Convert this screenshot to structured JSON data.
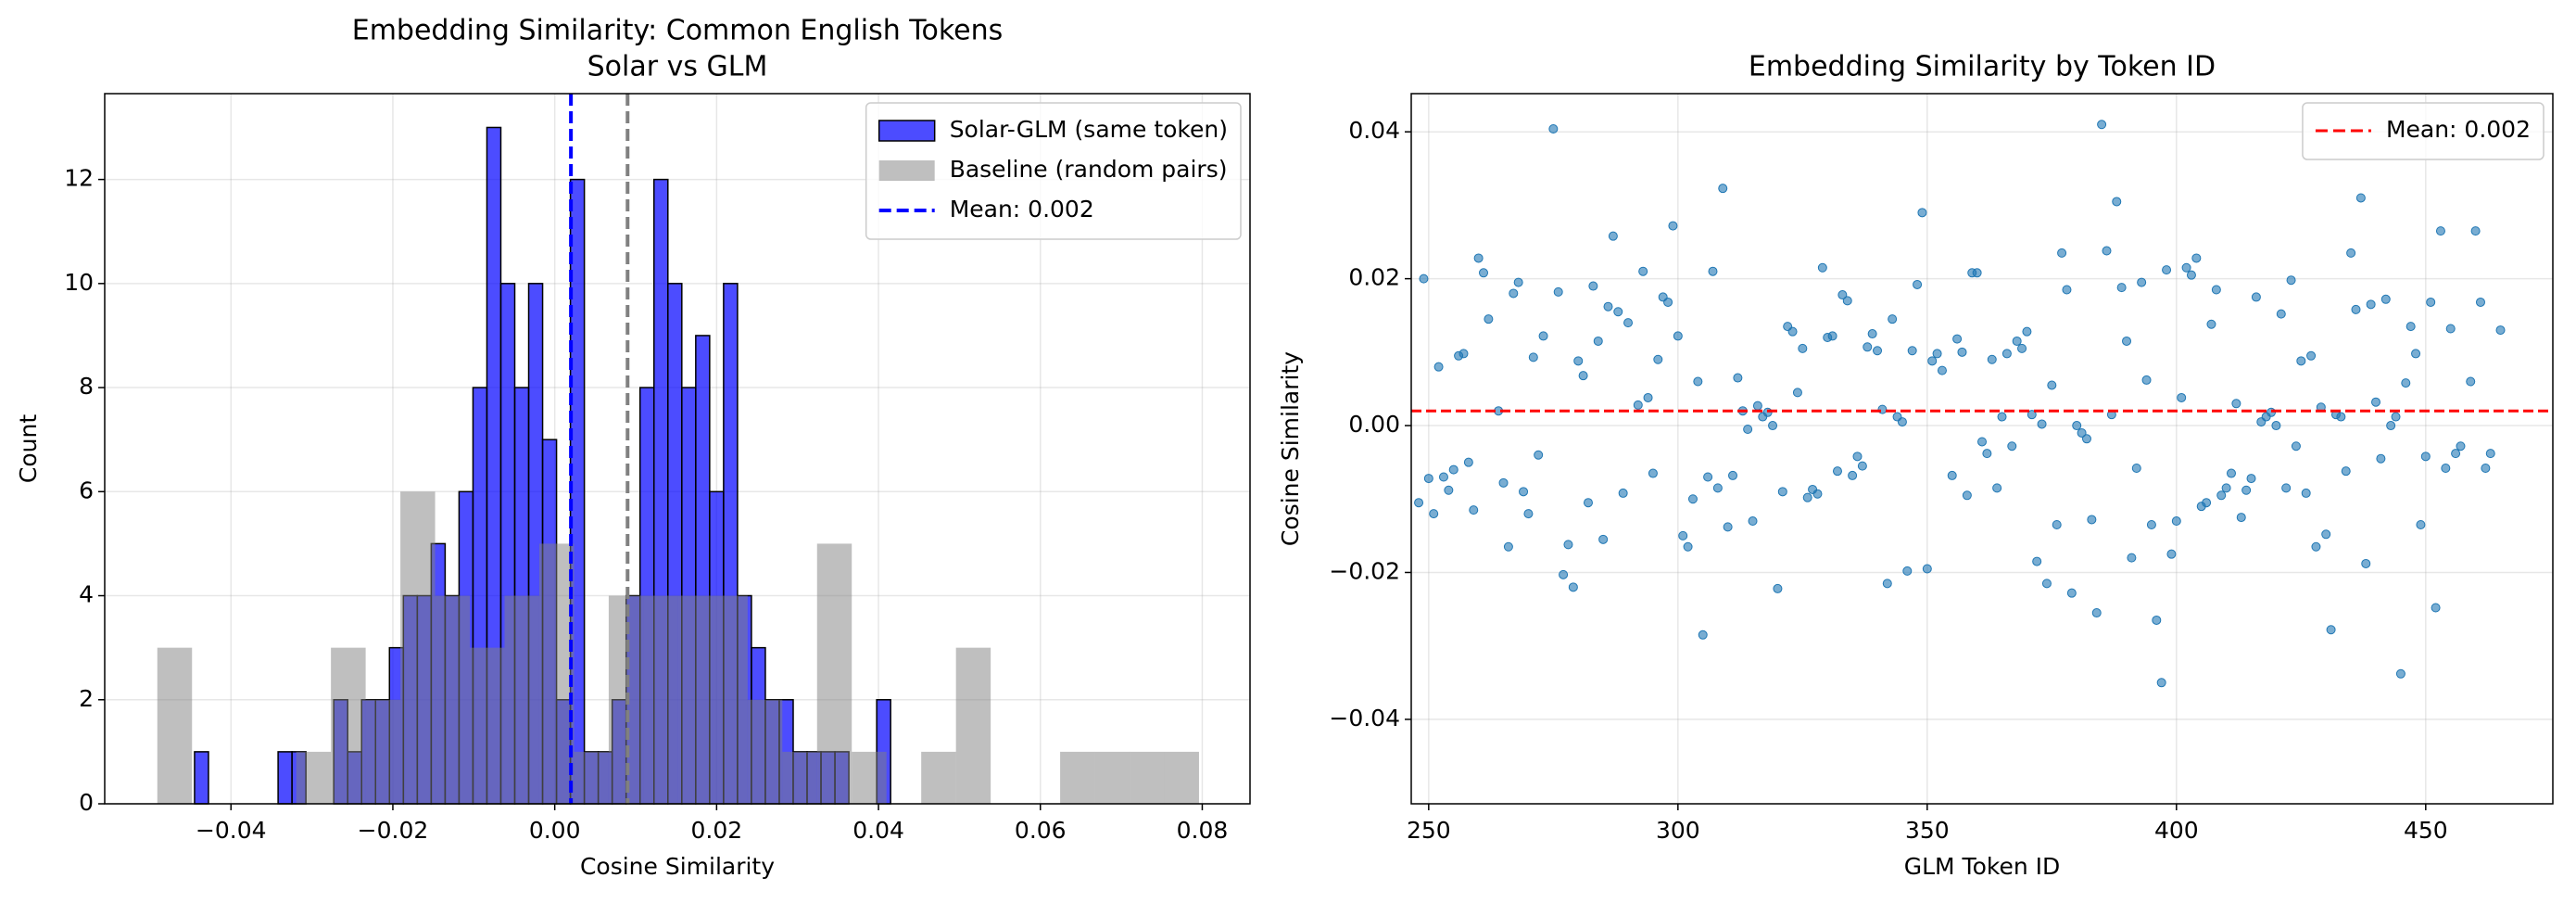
{
  "chart_data": [
    {
      "type": "histogram",
      "title": "Embedding Similarity: Common English Tokens",
      "subtitle": "Solar vs GLM",
      "x_label": "Cosine Similarity",
      "y_label": "Count",
      "xlim": [
        -0.0556,
        0.0859
      ],
      "ylim": [
        0,
        13.65
      ],
      "xticks": [
        {
          "value": -0.04,
          "label": "−0.04"
        },
        {
          "value": -0.02,
          "label": "−0.02"
        },
        {
          "value": 0,
          "label": "0.00"
        },
        0.02,
        0.04,
        0.06,
        0.08
      ],
      "yticks": [
        0,
        2,
        4,
        6,
        8,
        10,
        12
      ],
      "grid": true,
      "legend": "upper right",
      "series": [
        {
          "name": "Solar-GLM (same token)",
          "color": "#0000ff",
          "alpha": 0.7,
          "edgecolor": "#000000",
          "bins": [
            -0.0445,
            -0.04278,
            -0.04106,
            -0.03934,
            -0.03762,
            -0.0359,
            -0.03418,
            -0.03246,
            -0.03074,
            -0.02902,
            -0.0273,
            -0.02558,
            -0.02386,
            -0.02214,
            -0.02042,
            -0.0187,
            -0.01698,
            -0.01526,
            -0.01354,
            -0.01182,
            -0.0101,
            -0.00838,
            -0.00666,
            -0.00494,
            -0.00322,
            -0.0015,
            0.00022,
            0.00194,
            0.00366,
            0.00538,
            0.0071,
            0.00882,
            0.01054,
            0.01226,
            0.01398,
            0.0157,
            0.01742,
            0.01914,
            0.02086,
            0.02258,
            0.0243,
            0.02602,
            0.02774,
            0.02946,
            0.03118,
            0.0329,
            0.03462,
            0.03634,
            0.03806,
            0.03978,
            0.0415
          ],
          "values": [
            1,
            0,
            0,
            0,
            0,
            0,
            1,
            1,
            0,
            0,
            2,
            1,
            2,
            2,
            3,
            4,
            4,
            5,
            4,
            6,
            8,
            13,
            10,
            8,
            10,
            7,
            2,
            12,
            1,
            1,
            2,
            4,
            8,
            12,
            10,
            8,
            9,
            6,
            10,
            4,
            3,
            2,
            2,
            1,
            1,
            1,
            1,
            0,
            0,
            2
          ]
        },
        {
          "name": "Baseline (random pairs)",
          "color": "#808080",
          "alpha": 0.5,
          "bins": [
            -0.0491,
            -0.04481,
            -0.04052,
            -0.03623,
            -0.03194,
            -0.02765,
            -0.02336,
            -0.01907,
            -0.01478,
            -0.01049,
            -0.0062,
            -0.00191,
            0.00238,
            0.00667,
            0.01096,
            0.01525,
            0.01954,
            0.02383,
            0.02812,
            0.03241,
            0.0367,
            0.04099,
            0.04528,
            0.04957,
            0.05386,
            0.05815,
            0.06244,
            0.06673,
            0.07102,
            0.07531,
            0.0796
          ],
          "values": [
            3,
            0,
            0,
            0,
            1,
            3,
            2,
            6,
            4,
            3,
            4,
            5,
            1,
            4,
            4,
            4,
            4,
            2,
            1,
            5,
            1,
            0,
            1,
            3,
            0,
            0,
            1,
            1,
            1,
            1
          ]
        }
      ],
      "vlines": [
        {
          "value": 0.002,
          "label": "Mean: 0.002",
          "color": "#0000ff"
        },
        {
          "value": 0.009,
          "color": "#808080"
        }
      ]
    },
    {
      "type": "scatter",
      "title": "Embedding Similarity by Token ID",
      "x_label": "GLM Token ID",
      "y_label": "Cosine Similarity",
      "xlim": [
        246.5,
        475.5
      ],
      "ylim": [
        -0.0515,
        0.0452
      ],
      "xticks": [
        250,
        300,
        350,
        400,
        450
      ],
      "yticks": [
        {
          "value": -0.04,
          "label": "−0.04"
        },
        {
          "value": -0.02,
          "label": "−0.02"
        },
        {
          "value": 0,
          "label": "0.00"
        },
        0.02,
        0.04
      ],
      "grid": true,
      "legend": "upper right",
      "color": "#1f77b4",
      "alpha": 0.6,
      "x": [
        248,
        249,
        250,
        251,
        252,
        253,
        254,
        255,
        256,
        257,
        258,
        259,
        260,
        261,
        262,
        264,
        265,
        266,
        267,
        268,
        269,
        270,
        271,
        272,
        273,
        275,
        276,
        277,
        278,
        279,
        280,
        281,
        282,
        283,
        284,
        285,
        286,
        287,
        288,
        289,
        290,
        292,
        293,
        294,
        295,
        296,
        297,
        298,
        299,
        300,
        301,
        302,
        303,
        304,
        305,
        306,
        307,
        308,
        309,
        310,
        311,
        312,
        313,
        314,
        315,
        316,
        317,
        318,
        319,
        320,
        321,
        322,
        323,
        324,
        325,
        326,
        327,
        328,
        329,
        330,
        331,
        332,
        333,
        334,
        335,
        336,
        337,
        338,
        339,
        340,
        341,
        342,
        343,
        344,
        345,
        346,
        347,
        348,
        349,
        350,
        351,
        352,
        353,
        355,
        356,
        357,
        358,
        359,
        360,
        361,
        362,
        363,
        364,
        365,
        366,
        367,
        368,
        369,
        370,
        371,
        372,
        373,
        374,
        375,
        376,
        377,
        378,
        379,
        380,
        381,
        382,
        383,
        384,
        385,
        386,
        387,
        388,
        389,
        390,
        391,
        392,
        393,
        394,
        395,
        396,
        397,
        398,
        399,
        400,
        401,
        402,
        403,
        404,
        405,
        406,
        407,
        408,
        409,
        410,
        411,
        412,
        413,
        414,
        415,
        416,
        417,
        418,
        419,
        420,
        421,
        422,
        423,
        424,
        425,
        426,
        427,
        428,
        429,
        430,
        431,
        432,
        433,
        434,
        435,
        436,
        437,
        438,
        439,
        440,
        441,
        442,
        443,
        444,
        445,
        446,
        447,
        448,
        449,
        450,
        451,
        452,
        453,
        454,
        455,
        456,
        457,
        459,
        460,
        461,
        462,
        463,
        465
      ],
      "values": [
        -0.0105,
        0.02,
        -0.0072,
        -0.012,
        0.008,
        -0.007,
        -0.0088,
        -0.006,
        0.0095,
        0.0098,
        -0.005,
        -0.0115,
        0.0228,
        0.0208,
        0.0145,
        0.002,
        -0.0078,
        -0.0165,
        0.018,
        0.0195,
        -0.009,
        -0.012,
        0.0093,
        -0.004,
        0.0122,
        0.0404,
        0.0182,
        -0.0203,
        -0.0162,
        -0.022,
        0.0088,
        0.0068,
        -0.0105,
        0.019,
        0.0115,
        -0.0155,
        0.0162,
        0.0258,
        0.0155,
        -0.0092,
        0.014,
        0.0028,
        0.021,
        0.0038,
        -0.0065,
        0.009,
        0.0175,
        0.0168,
        0.0272,
        0.0122,
        -0.015,
        -0.0165,
        -0.01,
        0.006,
        -0.0285,
        -0.007,
        0.021,
        -0.0085,
        0.0323,
        -0.0138,
        -0.0068,
        0.0065,
        0.002,
        -0.0005,
        -0.013,
        0.0027,
        0.0012,
        0.0018,
        0,
        -0.0222,
        -0.009,
        0.0135,
        0.0128,
        0.0045,
        0.0105,
        -0.0098,
        -0.0087,
        -0.0093,
        0.0215,
        0.012,
        0.0122,
        -0.0062,
        0.0178,
        0.017,
        -0.0068,
        -0.0042,
        -0.0055,
        0.0107,
        0.0125,
        0.0102,
        0.0022,
        -0.0215,
        0.0145,
        0.0012,
        0.0005,
        -0.0198,
        0.0102,
        0.0192,
        0.029,
        -0.0195,
        0.0088,
        0.0098,
        0.0075,
        -0.0068,
        0.0118,
        0.01,
        -0.0095,
        0.0208,
        0.0208,
        -0.0022,
        -0.0038,
        0.009,
        -0.0085,
        0.0012,
        0.0098,
        -0.0028,
        0.0115,
        0.0105,
        0.0128,
        0.0015,
        -0.0185,
        0.0002,
        -0.0215,
        0.0055,
        -0.0135,
        0.0235,
        0.0185,
        -0.0228,
        0,
        -0.001,
        -0.0018,
        -0.0128,
        -0.0255,
        0.041,
        0.0238,
        0.0015,
        0.0305,
        0.0188,
        0.0115,
        -0.018,
        -0.0058,
        0.0195,
        0.0062,
        -0.0135,
        -0.0265,
        -0.035,
        0.0212,
        -0.0175,
        -0.013,
        0.0038,
        0.0215,
        0.0205,
        0.0228,
        -0.011,
        -0.0105,
        0.0138,
        0.0185,
        -0.0095,
        -0.0085,
        -0.0065,
        0.003,
        -0.0125,
        -0.0088,
        -0.0072,
        0.0175,
        0.0005,
        0.0012,
        0.0018,
        0,
        0.0152,
        -0.0085,
        0.0198,
        -0.0028,
        0.0088,
        -0.0092,
        0.0095,
        -0.0165,
        0.0025,
        -0.0148,
        -0.0278,
        0.0015,
        0.0012,
        -0.0062,
        0.0235,
        0.0158,
        0.031,
        -0.0188,
        0.0165,
        0.0032,
        -0.0045,
        0.0172,
        0,
        0.0012,
        -0.0338,
        0.0058,
        0.0135,
        0.0098,
        -0.0135,
        -0.0042,
        0.0168,
        -0.0248,
        0.0265,
        -0.0058,
        0.0132,
        -0.0038,
        -0.0028,
        0.006,
        0.0265,
        0.0168,
        -0.0058,
        -0.0038,
        0.013
      ],
      "hlines": [
        {
          "value": 0.002,
          "label": "Mean: 0.002",
          "color": "#ff0000"
        }
      ]
    }
  ]
}
